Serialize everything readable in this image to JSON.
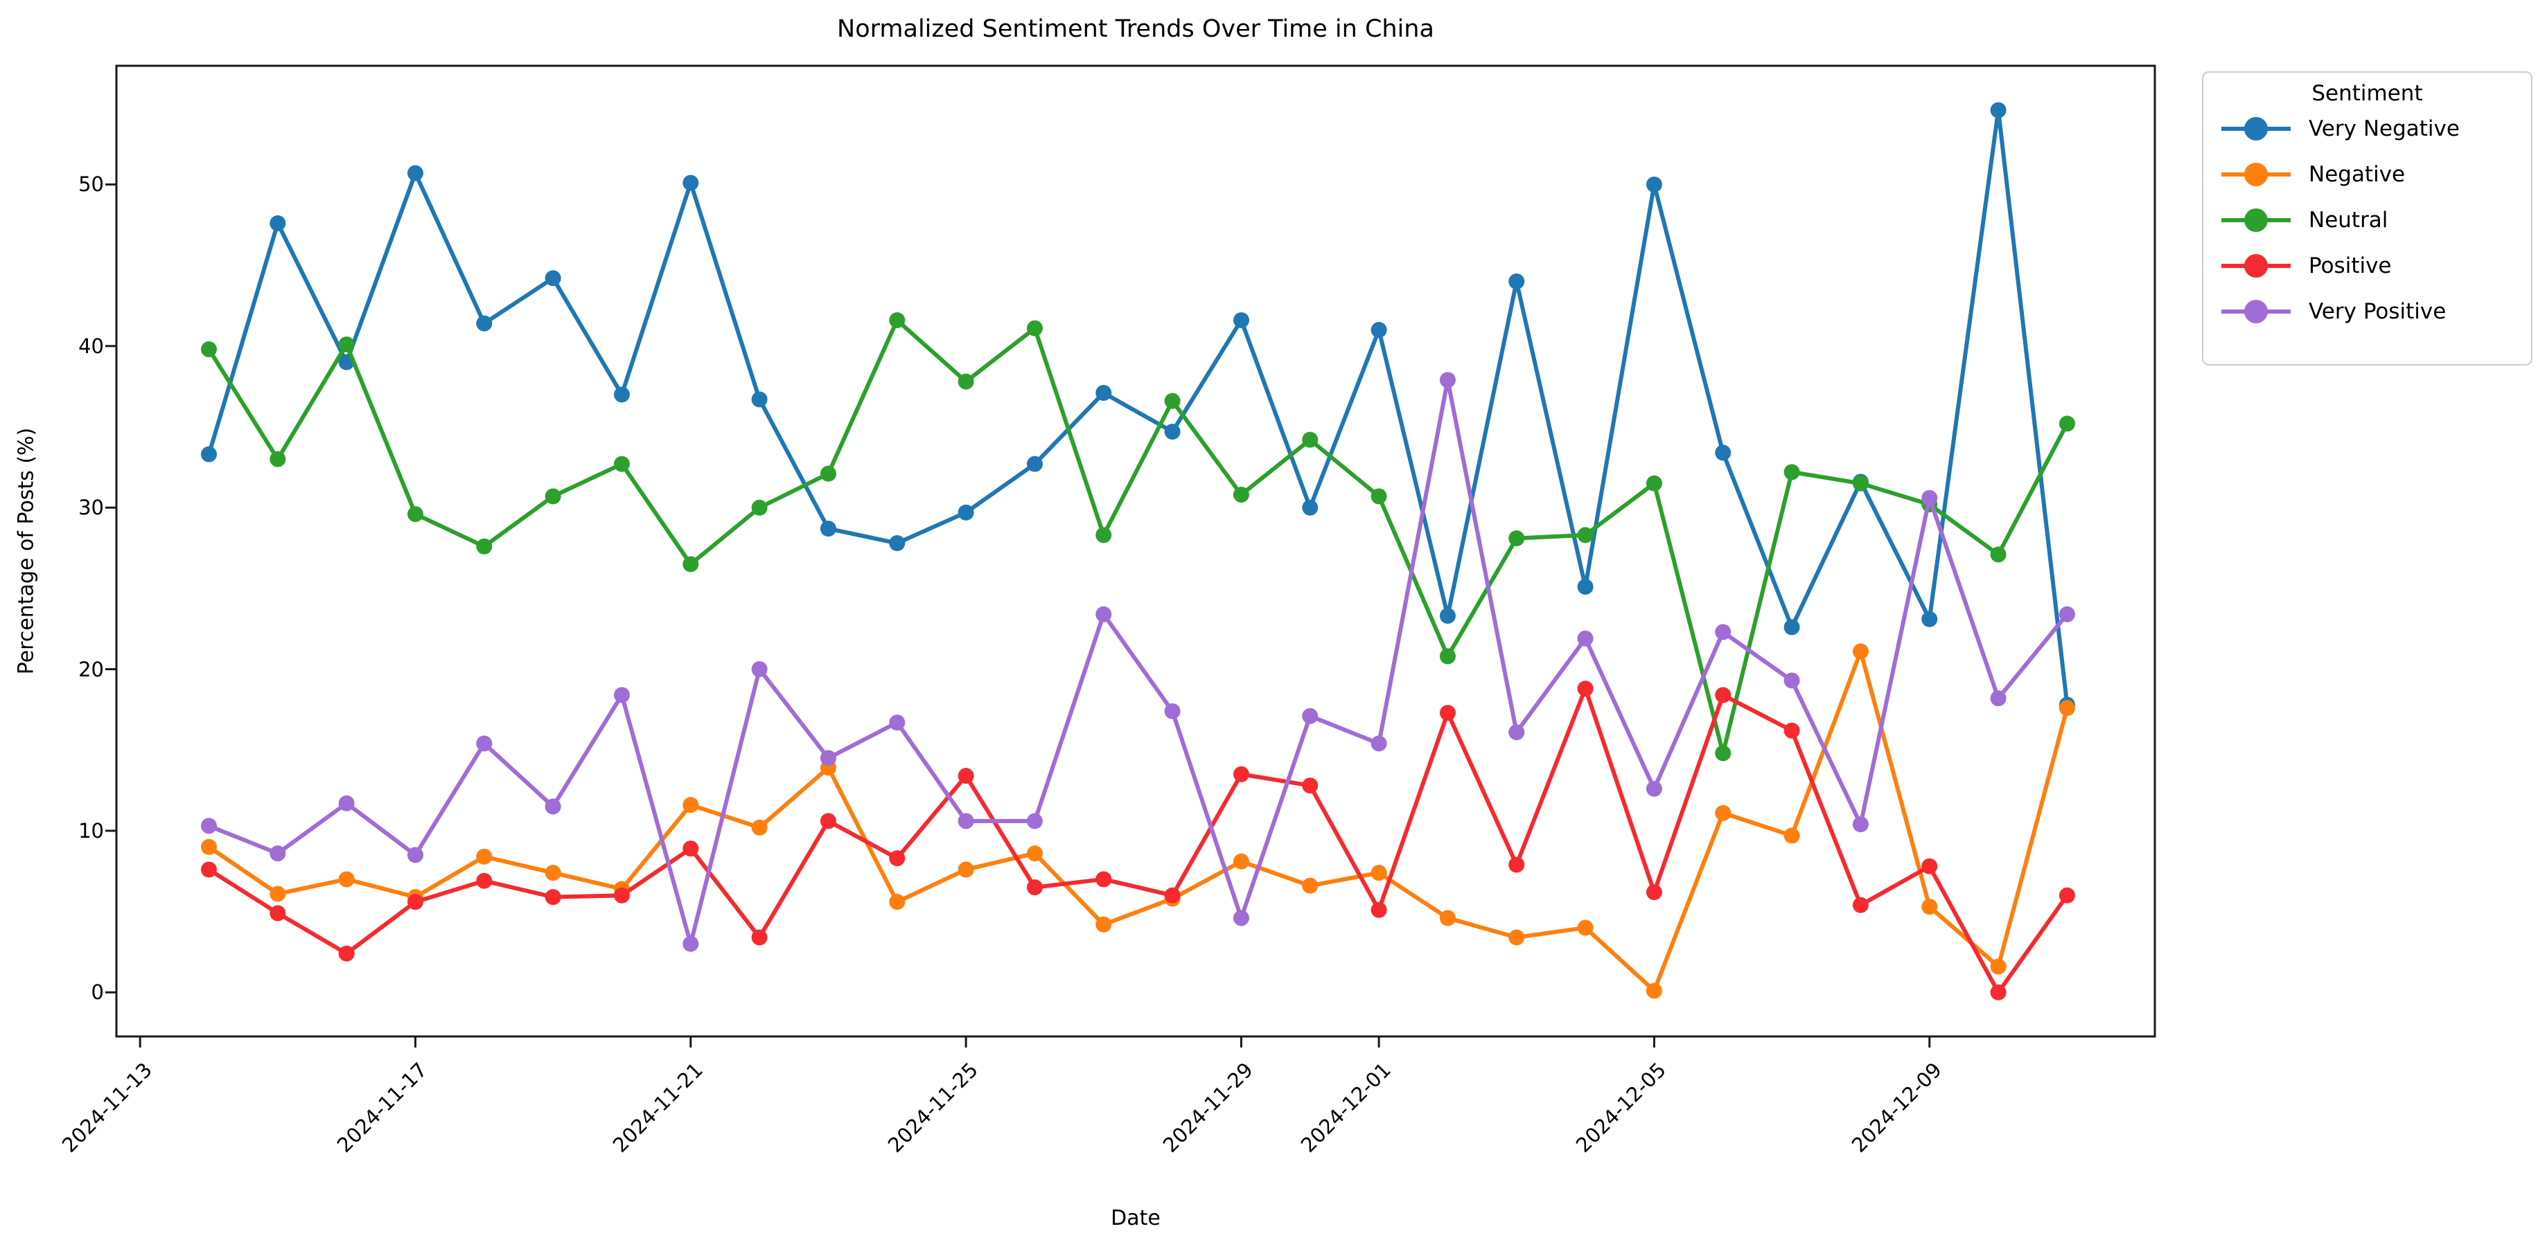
{
  "title": "Normalized Sentiment Trends Over Time in China",
  "axes": {
    "xlabel": "Date",
    "ylabel": "Percentage of Posts (%)",
    "x_tick_labels": [
      "2024-11-13",
      "2024-11-17",
      "2024-11-21",
      "2024-11-25",
      "2024-11-29",
      "2024-12-01",
      "2024-12-05",
      "2024-12-09"
    ],
    "x_tick_day_offsets": [
      -1,
      3,
      7,
      11,
      15,
      17,
      21,
      25
    ],
    "y_tick_labels": [
      "0",
      "10",
      "20",
      "30",
      "40",
      "50"
    ],
    "y_tick_values": [
      0,
      10,
      20,
      30,
      40,
      50
    ]
  },
  "legend": {
    "title": "Sentiment"
  },
  "chart_data": {
    "type": "line",
    "title": "Normalized Sentiment Trends Over Time in China",
    "xlabel": "Date",
    "ylabel": "Percentage of Posts (%)",
    "grid": false,
    "legend_position": "outside-right",
    "ylim": [
      -2.7,
      57.3
    ],
    "x": [
      "2024-11-14",
      "2024-11-15",
      "2024-11-16",
      "2024-11-17",
      "2024-11-18",
      "2024-11-19",
      "2024-11-20",
      "2024-11-21",
      "2024-11-22",
      "2024-11-23",
      "2024-11-24",
      "2024-11-25",
      "2024-11-26",
      "2024-11-27",
      "2024-11-28",
      "2024-11-29",
      "2024-11-30",
      "2024-12-01",
      "2024-12-02",
      "2024-12-03",
      "2024-12-04",
      "2024-12-05",
      "2024-12-06",
      "2024-12-07",
      "2024-12-08",
      "2024-12-09",
      "2024-12-10",
      "2024-12-11"
    ],
    "series": [
      {
        "name": "Very Negative",
        "color": "#1f77b4",
        "values": [
          33.3,
          47.6,
          39.0,
          50.7,
          41.4,
          44.2,
          37.0,
          50.1,
          36.7,
          28.7,
          27.8,
          29.7,
          32.7,
          37.1,
          34.7,
          41.6,
          30.0,
          41.0,
          23.3,
          44.0,
          25.1,
          50.0,
          33.4,
          22.6,
          31.6,
          23.1,
          54.6,
          17.8
        ]
      },
      {
        "name": "Negative",
        "color": "#ff7f0e",
        "values": [
          9.0,
          6.1,
          7.0,
          5.9,
          8.4,
          7.4,
          6.4,
          11.6,
          10.2,
          13.9,
          5.6,
          7.6,
          8.6,
          4.2,
          5.8,
          8.1,
          6.6,
          7.4,
          4.6,
          3.4,
          4.0,
          0.1,
          11.1,
          9.7,
          21.1,
          5.3,
          1.6,
          17.6
        ]
      },
      {
        "name": "Neutral",
        "color": "#2ca02c",
        "values": [
          39.8,
          33.0,
          40.1,
          29.6,
          27.6,
          30.7,
          32.7,
          26.5,
          30.0,
          32.1,
          41.6,
          37.8,
          41.1,
          28.3,
          36.6,
          30.8,
          34.2,
          30.7,
          20.8,
          28.1,
          28.3,
          31.5,
          14.8,
          32.2,
          31.5,
          30.2,
          27.1,
          35.2
        ]
      },
      {
        "name": "Positive",
        "color": "#f52a2e",
        "values": [
          7.6,
          4.9,
          2.4,
          5.6,
          6.9,
          5.9,
          6.0,
          8.9,
          3.4,
          10.6,
          8.3,
          13.4,
          6.5,
          7.0,
          6.0,
          13.5,
          12.8,
          5.1,
          17.3,
          7.9,
          18.8,
          6.2,
          18.4,
          16.2,
          5.4,
          7.8,
          0.0,
          6.0
        ]
      },
      {
        "name": "Very Positive",
        "color": "#a06cd5",
        "values": [
          10.3,
          8.6,
          11.7,
          8.5,
          15.4,
          11.5,
          18.4,
          3.0,
          20.0,
          14.5,
          16.7,
          10.6,
          10.6,
          23.4,
          17.4,
          4.6,
          17.1,
          15.4,
          37.9,
          16.1,
          21.9,
          12.6,
          22.3,
          19.3,
          10.4,
          30.6,
          18.2,
          23.4
        ]
      }
    ]
  }
}
